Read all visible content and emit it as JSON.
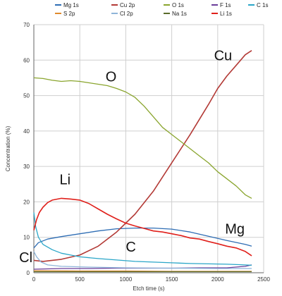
{
  "chart_data": {
    "type": "line",
    "xlabel": "Etch time (s)",
    "ylabel": "Concentration (%)",
    "xlim": [
      0,
      2500
    ],
    "ylim": [
      0,
      70
    ],
    "x_ticks": [
      "0",
      "500",
      "1000",
      "1500",
      "2000",
      "2500"
    ],
    "y_ticks": [
      "0",
      "10",
      "20",
      "30",
      "40",
      "50",
      "60",
      "70"
    ],
    "grid": true,
    "legend_position": "top",
    "annotations": [
      {
        "text": "O",
        "x": 780,
        "y": 54
      },
      {
        "text": "Cu",
        "x": 1960,
        "y": 60
      },
      {
        "text": "Li",
        "x": 280,
        "y": 25
      },
      {
        "text": "Mg",
        "x": 2080,
        "y": 11
      },
      {
        "text": "C",
        "x": 1000,
        "y": 6
      },
      {
        "text": "Cl",
        "x": -160,
        "y": 3
      }
    ],
    "series": [
      {
        "name": "Mg 1s",
        "color": "#2e6db4",
        "x": [
          0,
          50,
          150,
          300,
          500,
          700,
          900,
          1100,
          1300,
          1500,
          1700,
          1900,
          2100,
          2300,
          2370
        ],
        "y": [
          7,
          8.5,
          9.5,
          10.2,
          11,
          11.8,
          12.4,
          12.6,
          12.6,
          12.3,
          11.5,
          10.3,
          9.1,
          8,
          7.5
        ]
      },
      {
        "name": "Cu 2p",
        "color": "#b33a36",
        "x": [
          0,
          100,
          300,
          500,
          700,
          900,
          1100,
          1300,
          1500,
          1700,
          1900,
          2000,
          2100,
          2200,
          2300,
          2370
        ],
        "y": [
          3.5,
          3.2,
          3.8,
          5,
          7.5,
          11.5,
          16.5,
          23,
          31,
          39,
          47.5,
          52,
          55.5,
          58.5,
          61.5,
          62.7
        ]
      },
      {
        "name": "O 1s",
        "color": "#8aa52e",
        "x": [
          0,
          100,
          200,
          300,
          400,
          500,
          600,
          700,
          800,
          900,
          1000,
          1100,
          1200,
          1300,
          1400,
          1500,
          1600,
          1700,
          1800,
          1900,
          2000,
          2100,
          2200,
          2300,
          2370
        ],
        "y": [
          55,
          54.8,
          54.3,
          54,
          54.2,
          54,
          53.6,
          53.2,
          52.8,
          52,
          51,
          49.5,
          47,
          44,
          41,
          39,
          37,
          35,
          33,
          31,
          28.5,
          26.5,
          24.5,
          22,
          21
        ]
      },
      {
        "name": "F 1s",
        "color": "#6a3d9a",
        "x": [
          0,
          300,
          600,
          900,
          1200,
          1500,
          1800,
          2100,
          2300,
          2370
        ],
        "y": [
          1,
          1.2,
          1.2,
          1.3,
          1.3,
          1.3,
          1.4,
          1.4,
          1.8,
          2.2
        ]
      },
      {
        "name": "C 1s",
        "color": "#2aa6c8",
        "x": [
          0,
          20,
          50,
          100,
          200,
          300,
          400,
          500,
          700,
          900,
          1100,
          1300,
          1500,
          1700,
          1900,
          2100,
          2300,
          2370
        ],
        "y": [
          17,
          13,
          10,
          8,
          6.5,
          5.5,
          5,
          4.5,
          4,
          3.6,
          3.2,
          3,
          2.8,
          2.6,
          2.5,
          2.4,
          2.2,
          2.1
        ]
      },
      {
        "name": "S 2p",
        "color": "#e08a2c",
        "x": [
          0,
          500,
          1000,
          1500,
          2000,
          2370
        ],
        "y": [
          0.6,
          0.5,
          0.5,
          0.4,
          0.4,
          0.4
        ]
      },
      {
        "name": "Cl 2p",
        "color": "#8fb5d9",
        "x": [
          0,
          30,
          80,
          150,
          300,
          600,
          1000,
          1500,
          2000,
          2370
        ],
        "y": [
          6,
          4.5,
          3,
          2.2,
          1.8,
          1.6,
          1.4,
          1.3,
          1.2,
          1.2
        ]
      },
      {
        "name": "Na 1s",
        "color": "#5a6b2a",
        "x": [
          0,
          500,
          1000,
          1500,
          2000,
          2370
        ],
        "y": [
          0.3,
          0.3,
          0.3,
          0.3,
          0.3,
          0.3
        ]
      },
      {
        "name": "Li 1s",
        "color": "#e0201b",
        "x": [
          0,
          30,
          60,
          100,
          150,
          200,
          300,
          400,
          500,
          600,
          700,
          800,
          900,
          1000,
          1100,
          1200,
          1300,
          1400,
          1500,
          1600,
          1700,
          1800,
          1900,
          2000,
          2100,
          2200,
          2300,
          2370
        ],
        "y": [
          12,
          15,
          17,
          18.5,
          19.8,
          20.5,
          21,
          20.8,
          20.5,
          19.5,
          18,
          16.5,
          15.2,
          14,
          13.2,
          12.5,
          11.8,
          11.5,
          11,
          10.5,
          9.8,
          9.5,
          8.8,
          8.2,
          7.5,
          7,
          6,
          4.8
        ]
      }
    ]
  }
}
